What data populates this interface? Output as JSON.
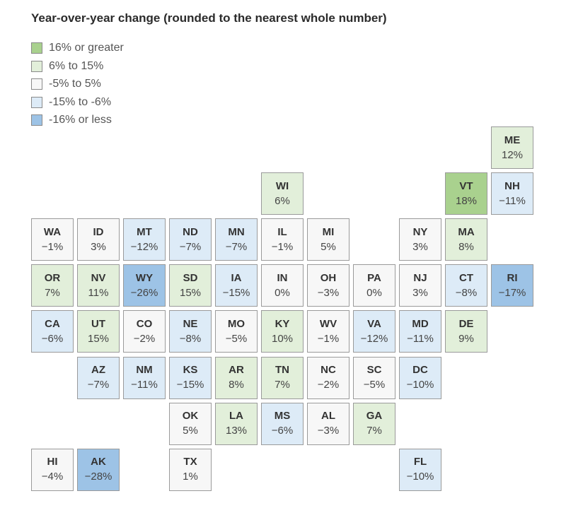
{
  "title": "Year-over-year change (rounded to the nearest whole number)",
  "colors": {
    "ge16": "#a9d18e",
    "6to15": "#e2efda",
    "neutral": "#f7f7f7",
    "neg6to15": "#ddebf7",
    "le_neg16": "#9dc3e6"
  },
  "legend": [
    {
      "label": "16% or greater",
      "key": "ge16"
    },
    {
      "label": "6% to 15%",
      "key": "6to15"
    },
    {
      "label": "-5% to 5%",
      "key": "neutral"
    },
    {
      "label": "-15% to -6%",
      "key": "neg6to15"
    },
    {
      "label": "-16% or less",
      "key": "le_neg16"
    }
  ],
  "states": [
    {
      "abbr": "ME",
      "value": "12%",
      "row": 0,
      "col": 10
    },
    {
      "abbr": "WI",
      "value": "6%",
      "row": 1,
      "col": 5
    },
    {
      "abbr": "VT",
      "value": "18%",
      "row": 1,
      "col": 9
    },
    {
      "abbr": "NH",
      "value": "-11%",
      "row": 1,
      "col": 10
    },
    {
      "abbr": "WA",
      "value": "-1%",
      "row": 2,
      "col": 0
    },
    {
      "abbr": "ID",
      "value": "3%",
      "row": 2,
      "col": 1
    },
    {
      "abbr": "MT",
      "value": "-12%",
      "row": 2,
      "col": 2
    },
    {
      "abbr": "ND",
      "value": "-7%",
      "row": 2,
      "col": 3
    },
    {
      "abbr": "MN",
      "value": "-7%",
      "row": 2,
      "col": 4
    },
    {
      "abbr": "IL",
      "value": "-1%",
      "row": 2,
      "col": 5
    },
    {
      "abbr": "MI",
      "value": "5%",
      "row": 2,
      "col": 6
    },
    {
      "abbr": "NY",
      "value": "3%",
      "row": 2,
      "col": 8
    },
    {
      "abbr": "MA",
      "value": "8%",
      "row": 2,
      "col": 9
    },
    {
      "abbr": "OR",
      "value": "7%",
      "row": 3,
      "col": 0
    },
    {
      "abbr": "NV",
      "value": "11%",
      "row": 3,
      "col": 1
    },
    {
      "abbr": "WY",
      "value": "-26%",
      "row": 3,
      "col": 2
    },
    {
      "abbr": "SD",
      "value": "15%",
      "row": 3,
      "col": 3
    },
    {
      "abbr": "IA",
      "value": "-15%",
      "row": 3,
      "col": 4
    },
    {
      "abbr": "IN",
      "value": "0%",
      "row": 3,
      "col": 5
    },
    {
      "abbr": "OH",
      "value": "-3%",
      "row": 3,
      "col": 6
    },
    {
      "abbr": "PA",
      "value": "0%",
      "row": 3,
      "col": 7
    },
    {
      "abbr": "NJ",
      "value": "3%",
      "row": 3,
      "col": 8
    },
    {
      "abbr": "CT",
      "value": "-8%",
      "row": 3,
      "col": 9
    },
    {
      "abbr": "RI",
      "value": "-17%",
      "row": 3,
      "col": 10
    },
    {
      "abbr": "CA",
      "value": "-6%",
      "row": 4,
      "col": 0
    },
    {
      "abbr": "UT",
      "value": "15%",
      "row": 4,
      "col": 1
    },
    {
      "abbr": "CO",
      "value": "-2%",
      "row": 4,
      "col": 2
    },
    {
      "abbr": "NE",
      "value": "-8%",
      "row": 4,
      "col": 3
    },
    {
      "abbr": "MO",
      "value": "-5%",
      "row": 4,
      "col": 4
    },
    {
      "abbr": "KY",
      "value": "10%",
      "row": 4,
      "col": 5
    },
    {
      "abbr": "WV",
      "value": "-1%",
      "row": 4,
      "col": 6
    },
    {
      "abbr": "VA",
      "value": "-12%",
      "row": 4,
      "col": 7
    },
    {
      "abbr": "MD",
      "value": "-11%",
      "row": 4,
      "col": 8
    },
    {
      "abbr": "DE",
      "value": "9%",
      "row": 4,
      "col": 9
    },
    {
      "abbr": "AZ",
      "value": "-7%",
      "row": 5,
      "col": 1
    },
    {
      "abbr": "NM",
      "value": "-11%",
      "row": 5,
      "col": 2
    },
    {
      "abbr": "KS",
      "value": "-15%",
      "row": 5,
      "col": 3
    },
    {
      "abbr": "AR",
      "value": "8%",
      "row": 5,
      "col": 4
    },
    {
      "abbr": "TN",
      "value": "7%",
      "row": 5,
      "col": 5
    },
    {
      "abbr": "NC",
      "value": "-2%",
      "row": 5,
      "col": 6
    },
    {
      "abbr": "SC",
      "value": "-5%",
      "row": 5,
      "col": 7
    },
    {
      "abbr": "DC",
      "value": "-10%",
      "row": 5,
      "col": 8
    },
    {
      "abbr": "OK",
      "value": "5%",
      "row": 6,
      "col": 3
    },
    {
      "abbr": "LA",
      "value": "13%",
      "row": 6,
      "col": 4
    },
    {
      "abbr": "MS",
      "value": "-6%",
      "row": 6,
      "col": 5
    },
    {
      "abbr": "AL",
      "value": "-3%",
      "row": 6,
      "col": 6
    },
    {
      "abbr": "GA",
      "value": "7%",
      "row": 6,
      "col": 7
    },
    {
      "abbr": "HI",
      "value": "-4%",
      "row": 7,
      "col": 0
    },
    {
      "abbr": "AK",
      "value": "-28%",
      "row": 7,
      "col": 1
    },
    {
      "abbr": "TX",
      "value": "1%",
      "row": 7,
      "col": 3
    },
    {
      "abbr": "FL",
      "value": "-10%",
      "row": 7,
      "col": 8
    }
  ]
}
